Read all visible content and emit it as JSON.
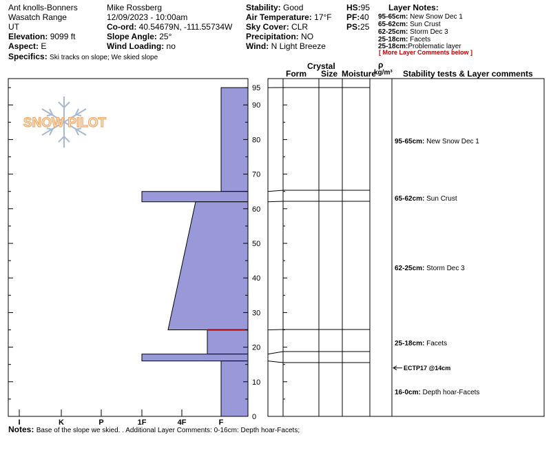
{
  "site": {
    "location": "Ant knolls-Bonners",
    "range": "Wasatch Range",
    "state": "UT",
    "elevation_label": "Elevation:",
    "elevation": "9099 ft",
    "aspect_label": "Aspect:",
    "aspect": "E",
    "specifics_label": "Specifics:",
    "specifics": "Ski tracks on slope; We skied slope"
  },
  "observer": {
    "name": "Mike Rossberg",
    "datetime": "12/09/2023 - 10:00am",
    "coord_label": "Co-ord:",
    "coord": "40.54679N, -111.55734W",
    "slope_label": "Slope Angle:",
    "slope": "25°",
    "wind_loading_label": "Wind Loading:",
    "wind_loading": "no"
  },
  "conditions": {
    "stability_label": "Stability:",
    "stability": "Good",
    "air_temp_label": "Air Temperature:",
    "air_temp": "17°F",
    "sky_label": "Sky Cover:",
    "sky": "CLR",
    "precip_label": "Precipitation:",
    "precip": "NO",
    "wind_label": "Wind:",
    "wind": "N Light Breeze"
  },
  "summary": {
    "hs_label": "HS:",
    "hs": "95",
    "pf_label": "PF:",
    "pf": "40",
    "ps_label": "PS:",
    "ps": "25"
  },
  "layer_notes": {
    "title": "Layer Notes:",
    "items": [
      {
        "range": "95-65cm:",
        "text": "New Snow Dec 1"
      },
      {
        "range": "65-62cm:",
        "text": "Sun Crust"
      },
      {
        "range": "62-25cm:",
        "text": "Storm Dec 3"
      },
      {
        "range": "25-18cm:",
        "text": "Facets"
      },
      {
        "range": "25-18cm:",
        "text": "Problematic layer"
      }
    ],
    "more": "[ More Layer Comments below ]"
  },
  "logo_text": "SNOW PILOT",
  "column_headers": {
    "crystal": "Crystal",
    "form": "Form",
    "size": "Size",
    "moisture": "Moisture",
    "rho": "ρ",
    "density": "kg/m³",
    "stability": "Stability tests & Layer comments"
  },
  "layer_comments": [
    {
      "range": "95-65cm:",
      "text": "New Snow Dec 1"
    },
    {
      "range": "65-62cm:",
      "text": "Sun Crust"
    },
    {
      "range": "62-25cm:",
      "text": "Storm Dec 3"
    },
    {
      "range": "25-18cm:",
      "text": "Facets"
    },
    {
      "range": "16-0cm:",
      "text": "Depth hoar-Facets"
    }
  ],
  "stability_test": {
    "text": "ECTP17 @14cm",
    "depth": 14
  },
  "notes": {
    "label": "Notes:",
    "text": "Base of the slope we skied. . Additional Layer Comments: 0-16cm: Depth hoar-Facets;"
  },
  "colors": {
    "profile_fill": "#9999d9",
    "red_line": "#aa0000"
  },
  "chart_data": {
    "type": "area",
    "ylim": [
      0,
      96
    ],
    "y_ticks": [
      0,
      10,
      20,
      30,
      40,
      50,
      60,
      70,
      80,
      90,
      95
    ],
    "x_categories": [
      "I",
      "K",
      "P",
      "1F",
      "4F",
      "F"
    ],
    "hand_hardness_profile": [
      {
        "bottom": 65,
        "top": 95,
        "hardness_top": "F",
        "hardness_bottom": "F"
      },
      {
        "bottom": 62,
        "top": 65,
        "hardness_top": "1F",
        "hardness_bottom": "1F"
      },
      {
        "bottom": 25,
        "top": 62,
        "hardness_top": "4F-",
        "hardness_bottom": "4F+"
      },
      {
        "bottom": 18,
        "top": 25,
        "hardness_top": "F+",
        "hardness_bottom": "F+"
      },
      {
        "bottom": 16,
        "top": 18,
        "hardness_top": "1F",
        "hardness_bottom": "1F"
      },
      {
        "bottom": 0,
        "top": 16,
        "hardness_top": "F",
        "hardness_bottom": "F"
      }
    ],
    "layer_boundaries": [
      95,
      65,
      62,
      25,
      18,
      16
    ],
    "red_boundary": 25
  }
}
